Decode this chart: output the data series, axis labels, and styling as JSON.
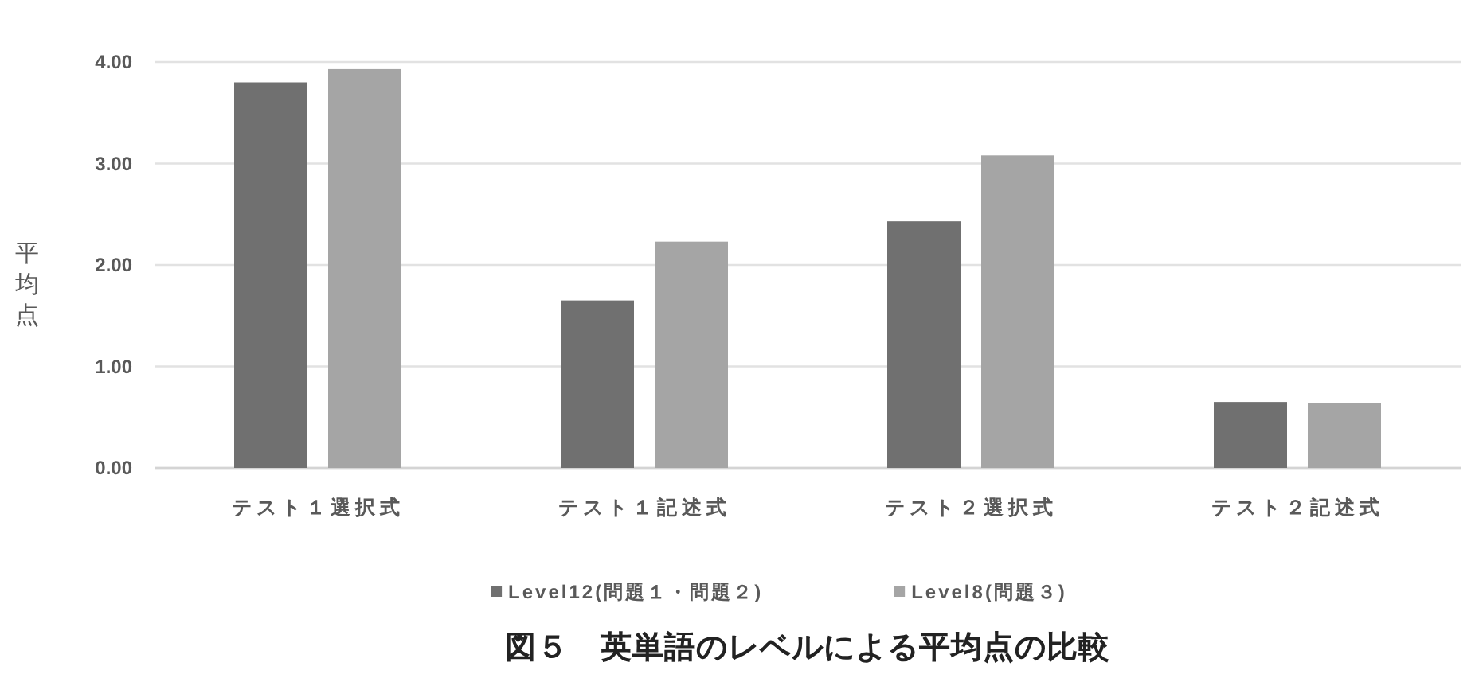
{
  "chart_data": {
    "type": "bar",
    "title": "図５　英単語のレベルによる平均点の比較",
    "ylabel": "平均点",
    "categories": [
      "テスト１選択式",
      "テスト１記述式",
      "テスト２選択式",
      "テスト２記述式"
    ],
    "series": [
      {
        "name": "Level12(問題１・問題２)",
        "color": "#707070",
        "values": [
          3.8,
          1.65,
          2.43,
          0.65
        ]
      },
      {
        "name": "Level8(問題３)",
        "color": "#a5a5a5",
        "values": [
          3.93,
          2.23,
          3.08,
          0.64
        ]
      }
    ],
    "ylim": [
      0,
      4
    ],
    "yticks": [
      {
        "value": 0,
        "label": "0.00"
      },
      {
        "value": 1,
        "label": "1.00"
      },
      {
        "value": 2,
        "label": "2.00"
      },
      {
        "value": 3,
        "label": "3.00"
      },
      {
        "value": 4,
        "label": "4.00"
      }
    ],
    "grid": "y",
    "legend": "bottom"
  }
}
